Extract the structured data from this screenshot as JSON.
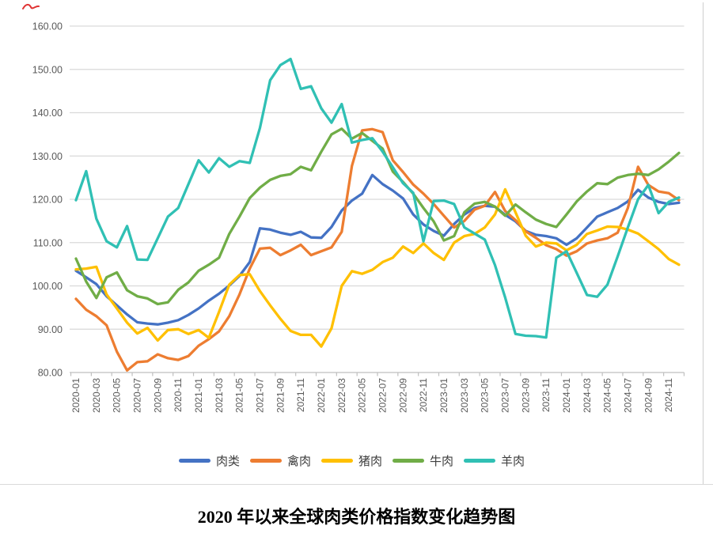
{
  "page": {
    "title": "2020 年以来全球肉类价格指数变化趋势图"
  },
  "legend": {
    "items": [
      {
        "label": "肉类",
        "color": "#4472C4"
      },
      {
        "label": "禽肉",
        "color": "#ED7D31"
      },
      {
        "label": "猪肉",
        "color": "#FFC000"
      },
      {
        "label": "牛肉",
        "color": "#70AD47"
      },
      {
        "label": "羊肉",
        "color": "#30C0B4"
      }
    ]
  },
  "chart_data": {
    "type": "line",
    "title": "2020 年以来全球肉类价格指数变化趋势图",
    "xlabel": "",
    "ylabel": "",
    "ylim": [
      80,
      160
    ],
    "y_tick_step": 10,
    "y_tick_labels": [
      "160.00",
      "150.00",
      "140.00",
      "130.00",
      "120.00",
      "110.00",
      "100.00",
      "90.00",
      "80.00"
    ],
    "grid": "horizontal-only",
    "legend_position": "bottom",
    "x_label_step": 2,
    "x": [
      "2020-01",
      "2020-02",
      "2020-03",
      "2020-04",
      "2020-05",
      "2020-06",
      "2020-07",
      "2020-08",
      "2020-09",
      "2020-10",
      "2020-11",
      "2020-12",
      "2021-01",
      "2021-02",
      "2021-03",
      "2021-04",
      "2021-05",
      "2021-06",
      "2021-07",
      "2021-08",
      "2021-09",
      "2021-10",
      "2021-11",
      "2021-12",
      "2022-01",
      "2022-02",
      "2022-03",
      "2022-04",
      "2022-05",
      "2022-06",
      "2022-07",
      "2022-08",
      "2022-09",
      "2022-10",
      "2022-11",
      "2022-12",
      "2023-01",
      "2023-02",
      "2023-03",
      "2023-04",
      "2023-05",
      "2023-06",
      "2023-07",
      "2023-08",
      "2023-09",
      "2023-10",
      "2023-11",
      "2023-12",
      "2024-01",
      "2024-02",
      "2024-03",
      "2024-04",
      "2024-05",
      "2024-06",
      "2024-07",
      "2024-08",
      "2024-09",
      "2024-10",
      "2024-11",
      "2024-12"
    ],
    "series": [
      {
        "name": "肉类",
        "color": "#4472C4",
        "values": [
          103.5,
          102.0,
          100.4,
          97.6,
          95.5,
          93.4,
          91.6,
          91.3,
          91.1,
          91.5,
          92.1,
          93.3,
          94.8,
          96.6,
          98.2,
          100.1,
          102.3,
          105.5,
          113.3,
          113.0,
          112.3,
          111.8,
          112.5,
          111.2,
          111.1,
          113.6,
          117.4,
          119.7,
          121.3,
          125.6,
          123.5,
          122.0,
          120.2,
          116.5,
          114.2,
          112.7,
          111.6,
          114.3,
          116.5,
          118.0,
          118.5,
          118.3,
          116.4,
          114.9,
          112.7,
          111.8,
          111.5,
          111.0,
          109.5,
          111.0,
          113.5,
          116.0,
          117.0,
          118.0,
          119.5,
          122.2,
          120.4,
          119.4,
          118.9,
          119.2
        ]
      },
      {
        "name": "禽肉",
        "color": "#ED7D31",
        "values": [
          97.0,
          94.5,
          93.0,
          90.9,
          84.8,
          80.5,
          82.4,
          82.6,
          84.2,
          83.3,
          82.9,
          83.8,
          86.2,
          87.7,
          89.5,
          93.0,
          98.0,
          104.0,
          108.6,
          108.8,
          107.1,
          108.2,
          109.5,
          107.1,
          108.0,
          108.9,
          112.5,
          127.7,
          135.9,
          136.2,
          135.5,
          129.0,
          126.3,
          123.4,
          121.3,
          118.9,
          116.2,
          113.5,
          115.0,
          117.6,
          118.5,
          121.7,
          117.3,
          115.2,
          112.6,
          111.1,
          109.4,
          108.5,
          107.0,
          108.0,
          109.8,
          110.5,
          111.0,
          112.3,
          118.0,
          127.5,
          123.3,
          121.8,
          121.4,
          119.8
        ]
      },
      {
        "name": "猪肉",
        "color": "#FFC000",
        "values": [
          103.8,
          104.0,
          104.4,
          98.0,
          94.8,
          91.5,
          89.0,
          90.3,
          87.4,
          89.8,
          90.0,
          88.9,
          89.8,
          88.0,
          94.0,
          100.3,
          102.5,
          102.7,
          98.8,
          95.5,
          92.4,
          89.6,
          88.7,
          88.7,
          86.0,
          90.2,
          100.0,
          103.4,
          102.8,
          103.7,
          105.5,
          106.5,
          109.1,
          107.6,
          109.8,
          107.6,
          106.0,
          110.0,
          111.5,
          112.0,
          113.5,
          116.5,
          122.3,
          117.0,
          111.6,
          109.1,
          110.0,
          109.8,
          108.2,
          109.5,
          112.0,
          112.8,
          113.7,
          113.6,
          113.0,
          112.1,
          110.3,
          108.5,
          106.2,
          104.9
        ]
      },
      {
        "name": "牛肉",
        "color": "#70AD47",
        "values": [
          106.3,
          101.0,
          97.2,
          102.0,
          103.1,
          99.0,
          97.6,
          97.1,
          95.8,
          96.2,
          99.1,
          100.8,
          103.5,
          104.9,
          106.5,
          112.0,
          116.0,
          120.3,
          122.7,
          124.5,
          125.4,
          125.8,
          127.5,
          126.7,
          131.0,
          135.0,
          136.3,
          134.0,
          135.3,
          133.5,
          131.7,
          126.4,
          124.0,
          121.3,
          118.0,
          114.9,
          110.5,
          111.5,
          117.0,
          119.0,
          119.4,
          118.3,
          116.2,
          118.8,
          117.0,
          115.3,
          114.3,
          113.6,
          116.5,
          119.5,
          121.8,
          123.7,
          123.5,
          125.0,
          125.6,
          125.9,
          125.6,
          126.9,
          128.7,
          130.7
        ]
      },
      {
        "name": "羊肉",
        "color": "#30C0B4",
        "values": [
          119.8,
          126.5,
          115.5,
          110.3,
          108.9,
          113.8,
          106.1,
          106.0,
          111.0,
          116.0,
          118.0,
          123.5,
          129.0,
          126.2,
          129.5,
          127.5,
          128.8,
          128.4,
          136.5,
          147.5,
          151.0,
          152.4,
          145.5,
          146.1,
          141.0,
          137.7,
          142.0,
          133.1,
          133.7,
          134.1,
          131.0,
          127.4,
          123.7,
          121.5,
          110.3,
          119.6,
          119.7,
          118.9,
          113.5,
          112.1,
          110.7,
          104.8,
          97.3,
          88.9,
          88.5,
          88.4,
          88.1,
          106.5,
          108.0,
          103.0,
          97.9,
          97.5,
          100.3,
          106.8,
          113.5,
          120.0,
          123.3,
          116.8,
          119.4,
          120.4
        ]
      }
    ]
  }
}
